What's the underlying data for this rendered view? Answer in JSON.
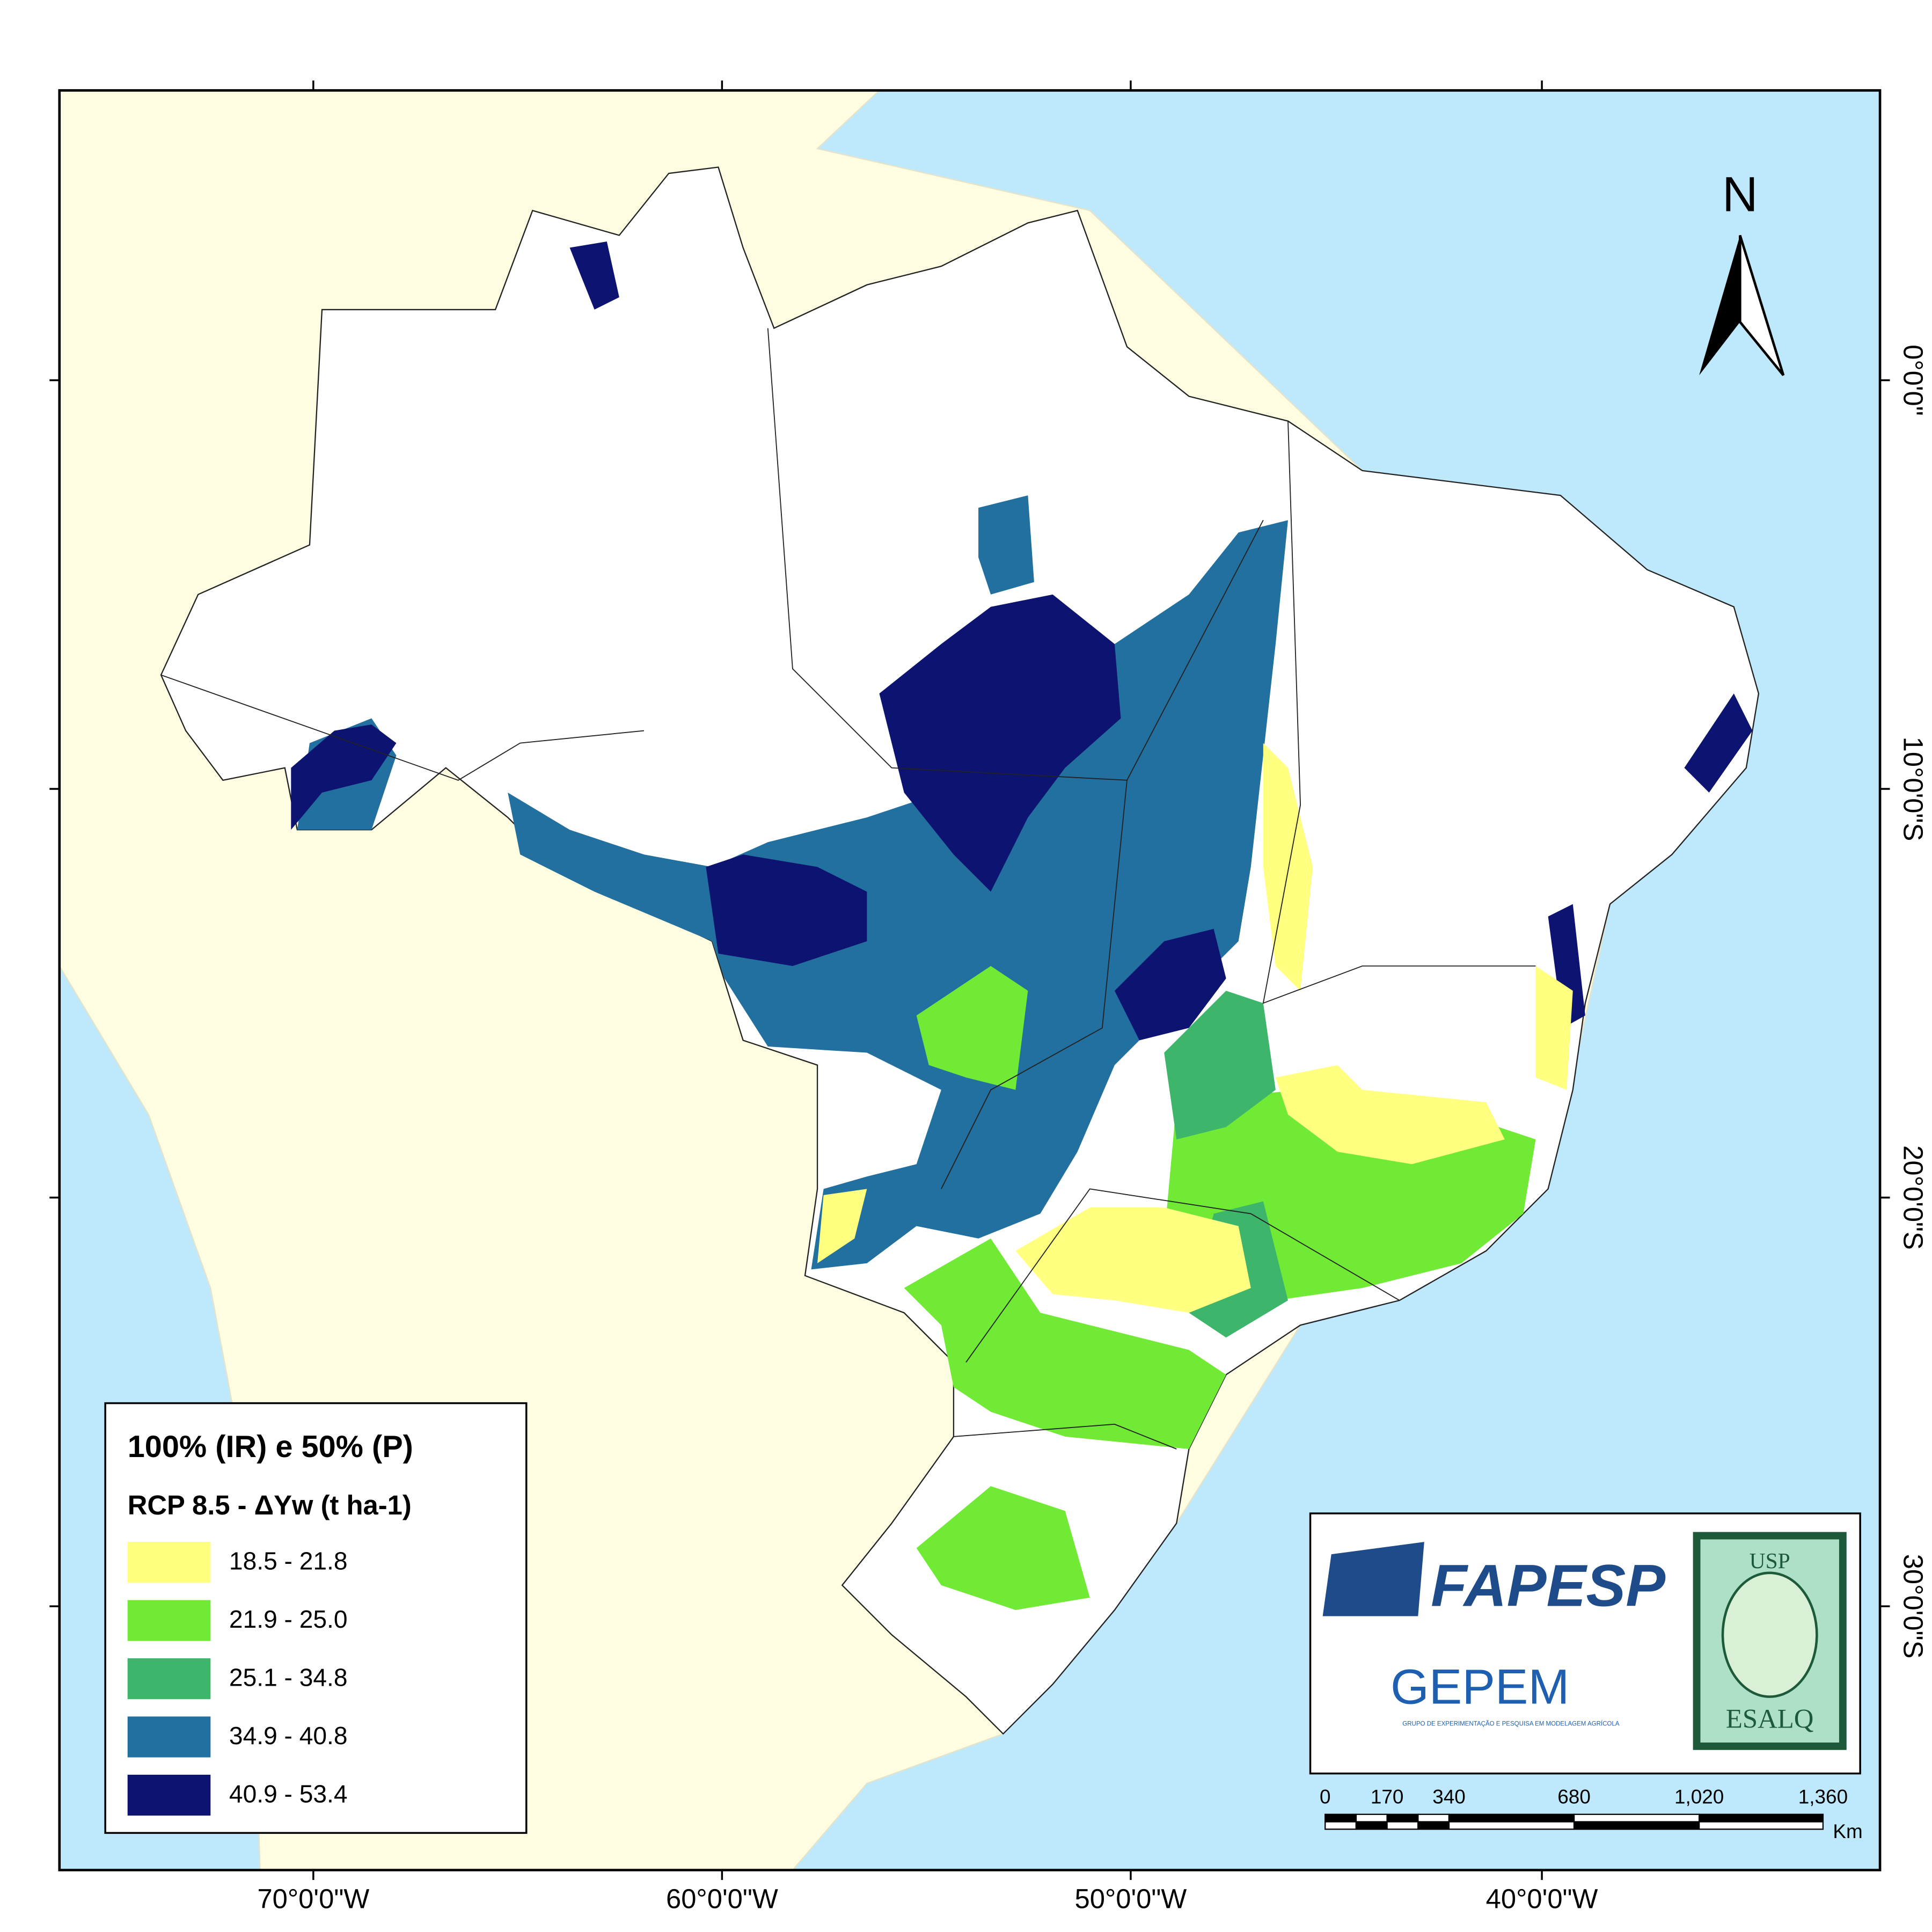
{
  "map": {
    "legend": {
      "title": "100% (IR) e 50% (P)",
      "subtitle": "RCP 8.5 - ΔYw (t ha-1)",
      "items": [
        {
          "label": "18.5 - 21.8",
          "color": "#ffff80"
        },
        {
          "label": "21.9 - 25.0",
          "color": "#70ea34"
        },
        {
          "label": "25.1 - 34.8",
          "color": "#3db56a"
        },
        {
          "label": "34.9 - 40.8",
          "color": "#22709f"
        },
        {
          "label": "40.9 - 53.4",
          "color": "#0d1371"
        }
      ]
    },
    "longitude_labels": [
      "70°0'0\"W",
      "60°0'0\"W",
      "50°0'0\"W",
      "40°0'0\"W"
    ],
    "latitude_labels": [
      "0°0'0\"",
      "10°0'0\"S",
      "20°0'0\"S",
      "30°0'0\"S"
    ],
    "north_label": "N",
    "scale_bar": {
      "labels": [
        "0",
        "170",
        "340",
        "680",
        "1,020",
        "1,360"
      ],
      "unit": "Km"
    },
    "logos": {
      "fapesp": "FAPESP",
      "gepema": "GEPEM",
      "gepema_subtitle": "GRUPO DE EXPERIMENTAÇÃO E PESQUISA EM MODELAGEM AGRÍCOLA",
      "usp": "USP",
      "esalq": "ESALQ"
    }
  }
}
